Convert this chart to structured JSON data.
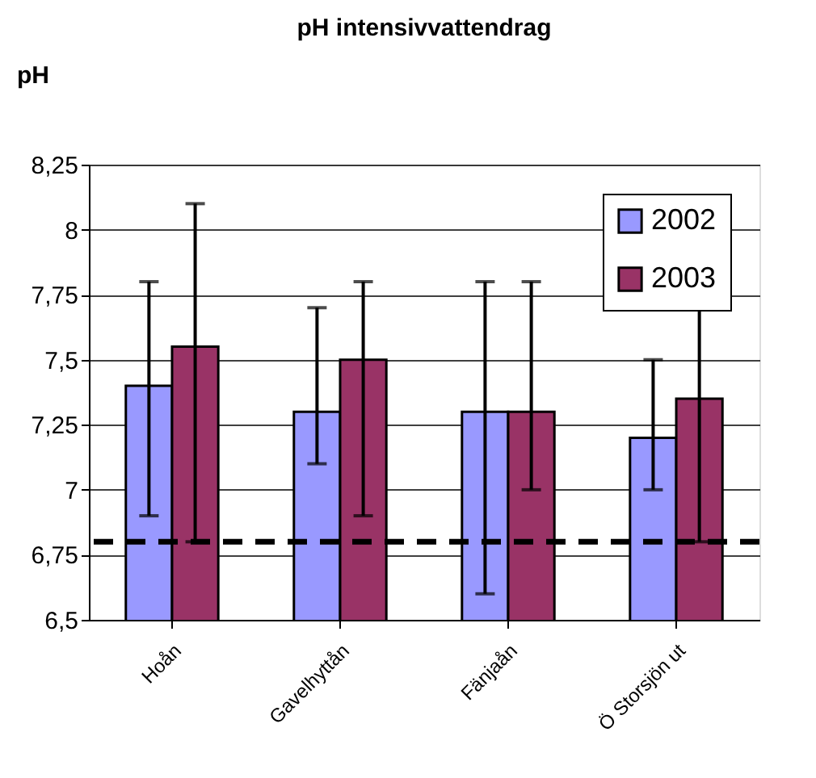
{
  "chart_data": {
    "type": "bar",
    "title": "pH intensivvattendrag",
    "ylabel": "pH",
    "categories": [
      "Hoån",
      "Gavelhyttån",
      "Fänjaån",
      "Ö Storsjön ut"
    ],
    "series": [
      {
        "name": "2002",
        "color": "#9999ff",
        "values": [
          7.4,
          7.3,
          7.3,
          7.2
        ],
        "errors": [
          [
            6.9,
            7.8
          ],
          [
            7.1,
            7.7
          ],
          [
            6.6,
            7.8
          ],
          [
            7.0,
            7.5
          ]
        ]
      },
      {
        "name": "2003",
        "color": "#993366",
        "values": [
          7.55,
          7.5,
          7.3,
          7.35
        ],
        "errors": [
          [
            6.8,
            8.1
          ],
          [
            6.9,
            7.8
          ],
          [
            7.0,
            7.8
          ],
          [
            6.8,
            7.7
          ]
        ]
      }
    ],
    "ylim": [
      6.5,
      8.25
    ],
    "yticks": [
      {
        "value": 6.5,
        "label": "6,5"
      },
      {
        "value": 6.75,
        "label": "6,75"
      },
      7,
      {
        "value": 7.25,
        "label": "7,25"
      },
      {
        "value": 7.5,
        "label": "7,5"
      },
      {
        "value": 7.75,
        "label": "7,75"
      },
      8,
      {
        "value": 8.25,
        "label": "8,25"
      }
    ],
    "ref_lines": [
      {
        "axis": "y",
        "value": 6.8,
        "line_style": "dashed",
        "color": "#000000"
      }
    ],
    "grid": "y",
    "legend": "top right"
  }
}
